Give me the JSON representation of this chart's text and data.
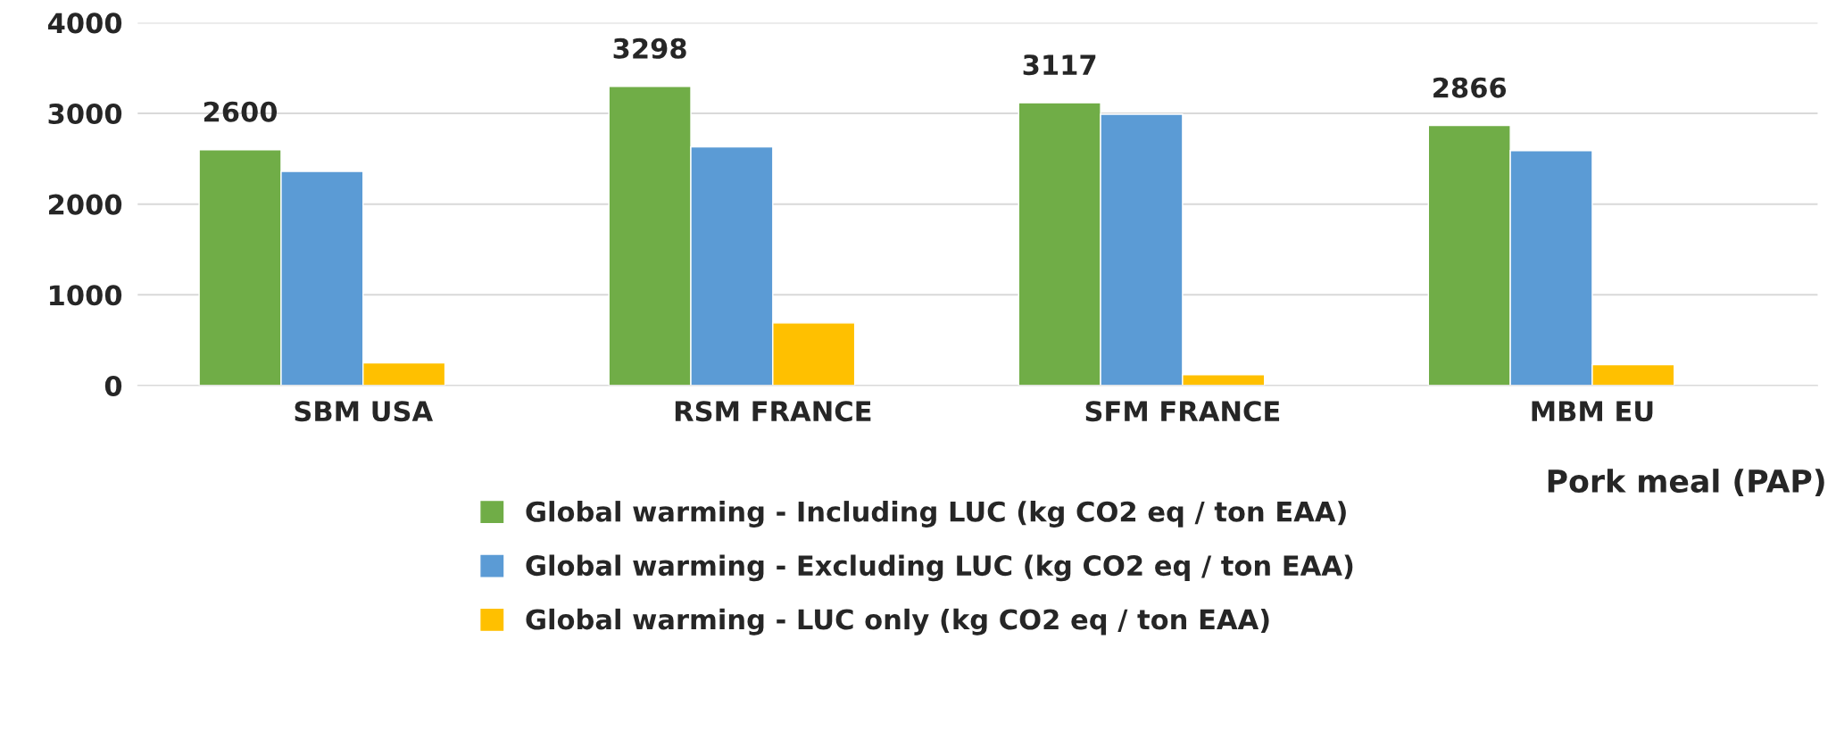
{
  "chart_data": {
    "type": "bar",
    "categories": [
      "SBM USA",
      "RSM FRANCE",
      "SFM FRANCE",
      "MBM EU"
    ],
    "series": [
      {
        "name": "Global warming - Including LUC (kg CO2 eq / ton EAA)",
        "color": "#70ad47",
        "values": [
          2600,
          3298,
          3117,
          2866
        ],
        "value_labels": [
          "2600",
          "3298",
          "3117",
          "2866"
        ]
      },
      {
        "name": "Global warming - Excluding LUC (kg CO2 eq / ton EAA)",
        "color": "#5b9bd5",
        "values": [
          2360,
          2630,
          2990,
          2590
        ]
      },
      {
        "name": "Global warming - LUC only (kg CO2 eq / ton EAA)",
        "color": "#ffc000",
        "values": [
          250,
          690,
          120,
          230
        ]
      }
    ],
    "ylim": [
      0,
      4000
    ],
    "yticks": [
      0,
      1000,
      2000,
      3000,
      4000
    ],
    "grid": "y",
    "legend": "bottom",
    "annotations": [
      "Pork meal (PAP)"
    ]
  }
}
